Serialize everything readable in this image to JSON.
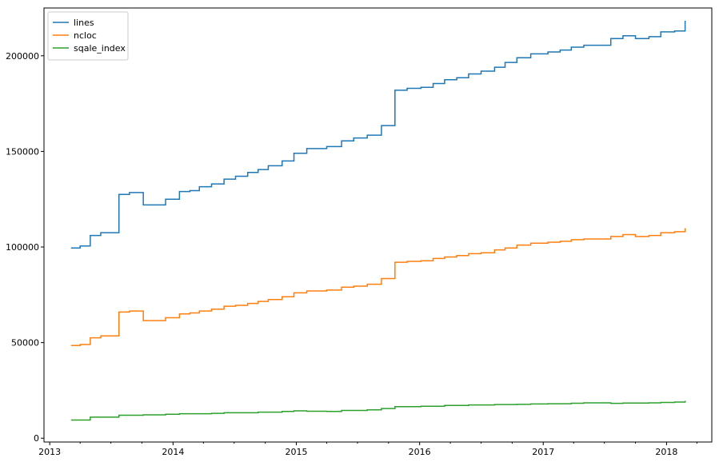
{
  "chart_data": {
    "type": "line",
    "line_style": "steps-post",
    "title": "",
    "xlabel": "",
    "ylabel": "",
    "xlim": [
      "2012-12-15",
      "2018-05-15"
    ],
    "ylim": [
      -2000,
      225000
    ],
    "grid": false,
    "legend_position": "top-left",
    "x_ticks": [
      {
        "date": "2013-01-01",
        "label": "2013"
      },
      {
        "date": "2014-01-01",
        "label": "2014"
      },
      {
        "date": "2015-01-01",
        "label": "2015"
      },
      {
        "date": "2016-01-01",
        "label": "2016"
      },
      {
        "date": "2017-01-01",
        "label": "2017"
      },
      {
        "date": "2018-01-01",
        "label": "2018"
      }
    ],
    "x_minor_ticks": [
      "2013-04-01",
      "2013-07-01",
      "2013-10-01",
      "2014-04-01",
      "2014-07-01",
      "2014-10-01",
      "2015-04-01",
      "2015-07-01",
      "2015-10-01",
      "2016-04-01",
      "2016-07-01",
      "2016-10-01",
      "2017-04-01",
      "2017-07-01",
      "2017-10-01",
      "2018-04-01"
    ],
    "y_ticks": [
      {
        "value": 0,
        "label": "0"
      },
      {
        "value": 50000,
        "label": "50000"
      },
      {
        "value": 100000,
        "label": "100000"
      },
      {
        "value": 150000,
        "label": "150000"
      },
      {
        "value": 200000,
        "label": "200000"
      }
    ],
    "series": [
      {
        "name": "lines",
        "color": "#1f77b4",
        "points": [
          [
            "2013-03-05",
            99500
          ],
          [
            "2013-04-01",
            100500
          ],
          [
            "2013-05-01",
            106000
          ],
          [
            "2013-06-01",
            107500
          ],
          [
            "2013-07-25",
            127500
          ],
          [
            "2013-08-25",
            128500
          ],
          [
            "2013-10-05",
            122000
          ],
          [
            "2013-12-10",
            125000
          ],
          [
            "2014-01-20",
            129000
          ],
          [
            "2014-02-20",
            129500
          ],
          [
            "2014-03-20",
            131500
          ],
          [
            "2014-04-25",
            133000
          ],
          [
            "2014-06-01",
            135500
          ],
          [
            "2014-07-05",
            137000
          ],
          [
            "2014-08-10",
            139000
          ],
          [
            "2014-09-10",
            140500
          ],
          [
            "2014-10-10",
            142500
          ],
          [
            "2014-11-20",
            145000
          ],
          [
            "2014-12-25",
            149000
          ],
          [
            "2015-02-01",
            151500
          ],
          [
            "2015-04-01",
            152500
          ],
          [
            "2015-05-15",
            155500
          ],
          [
            "2015-06-20",
            157000
          ],
          [
            "2015-07-30",
            158500
          ],
          [
            "2015-09-10",
            163500
          ],
          [
            "2015-10-20",
            182000
          ],
          [
            "2015-11-25",
            183000
          ],
          [
            "2016-01-05",
            183500
          ],
          [
            "2016-02-10",
            185500
          ],
          [
            "2016-03-15",
            187500
          ],
          [
            "2016-04-20",
            188500
          ],
          [
            "2016-05-25",
            190500
          ],
          [
            "2016-07-01",
            192000
          ],
          [
            "2016-08-10",
            194000
          ],
          [
            "2016-09-10",
            196500
          ],
          [
            "2016-10-15",
            199000
          ],
          [
            "2016-11-25",
            201000
          ],
          [
            "2017-01-15",
            202000
          ],
          [
            "2017-02-20",
            203000
          ],
          [
            "2017-03-25",
            204500
          ],
          [
            "2017-05-01",
            205500
          ],
          [
            "2017-06-01",
            205500
          ],
          [
            "2017-07-20",
            209000
          ],
          [
            "2017-08-25",
            210500
          ],
          [
            "2017-10-01",
            209000
          ],
          [
            "2017-11-10",
            210000
          ],
          [
            "2017-12-15",
            212500
          ],
          [
            "2018-01-25",
            213000
          ],
          [
            "2018-02-25",
            218000
          ],
          [
            "2018-02-27",
            218000
          ]
        ]
      },
      {
        "name": "ncloc",
        "color": "#ff7f0e",
        "points": [
          [
            "2013-03-05",
            48500
          ],
          [
            "2013-04-01",
            49000
          ],
          [
            "2013-05-01",
            52500
          ],
          [
            "2013-06-01",
            53500
          ],
          [
            "2013-07-25",
            66000
          ],
          [
            "2013-08-25",
            66500
          ],
          [
            "2013-10-05",
            61500
          ],
          [
            "2013-12-10",
            63000
          ],
          [
            "2014-01-20",
            65000
          ],
          [
            "2014-02-20",
            65500
          ],
          [
            "2014-03-20",
            66500
          ],
          [
            "2014-04-25",
            67500
          ],
          [
            "2014-06-01",
            69000
          ],
          [
            "2014-07-05",
            69500
          ],
          [
            "2014-08-10",
            70500
          ],
          [
            "2014-09-10",
            71500
          ],
          [
            "2014-10-10",
            72500
          ],
          [
            "2014-11-20",
            74000
          ],
          [
            "2014-12-25",
            76000
          ],
          [
            "2015-02-01",
            77000
          ],
          [
            "2015-04-01",
            77500
          ],
          [
            "2015-05-15",
            79000
          ],
          [
            "2015-06-20",
            79500
          ],
          [
            "2015-07-30",
            80500
          ],
          [
            "2015-09-10",
            83500
          ],
          [
            "2015-10-20",
            92000
          ],
          [
            "2015-11-25",
            92500
          ],
          [
            "2016-01-05",
            92800
          ],
          [
            "2016-02-10",
            94000
          ],
          [
            "2016-03-15",
            94800
          ],
          [
            "2016-04-20",
            95500
          ],
          [
            "2016-05-25",
            96500
          ],
          [
            "2016-07-01",
            97000
          ],
          [
            "2016-08-10",
            98500
          ],
          [
            "2016-09-10",
            99500
          ],
          [
            "2016-10-15",
            101000
          ],
          [
            "2016-11-25",
            102000
          ],
          [
            "2017-01-15",
            102500
          ],
          [
            "2017-02-20",
            103000
          ],
          [
            "2017-03-25",
            103800
          ],
          [
            "2017-05-01",
            104200
          ],
          [
            "2017-06-01",
            104200
          ],
          [
            "2017-07-20",
            105500
          ],
          [
            "2017-08-25",
            106500
          ],
          [
            "2017-10-01",
            105500
          ],
          [
            "2017-11-10",
            106000
          ],
          [
            "2017-12-15",
            107500
          ],
          [
            "2018-01-25",
            108000
          ],
          [
            "2018-02-25",
            109500
          ],
          [
            "2018-02-27",
            109500
          ]
        ]
      },
      {
        "name": "sqale_index",
        "color": "#2ca02c",
        "points": [
          [
            "2013-03-05",
            9500
          ],
          [
            "2013-05-01",
            11000
          ],
          [
            "2013-07-25",
            12000
          ],
          [
            "2013-10-05",
            12200
          ],
          [
            "2013-12-10",
            12500
          ],
          [
            "2014-01-20",
            12800
          ],
          [
            "2014-04-25",
            13000
          ],
          [
            "2014-06-01",
            13300
          ],
          [
            "2014-09-10",
            13600
          ],
          [
            "2014-11-20",
            14000
          ],
          [
            "2014-12-25",
            14300
          ],
          [
            "2015-02-01",
            14100
          ],
          [
            "2015-04-01",
            14000
          ],
          [
            "2015-05-15",
            14500
          ],
          [
            "2015-07-30",
            14800
          ],
          [
            "2015-09-10",
            15500
          ],
          [
            "2015-10-20",
            16500
          ],
          [
            "2016-01-05",
            16700
          ],
          [
            "2016-03-15",
            17100
          ],
          [
            "2016-05-25",
            17400
          ],
          [
            "2016-08-10",
            17600
          ],
          [
            "2016-10-15",
            17700
          ],
          [
            "2016-11-25",
            17900
          ],
          [
            "2017-01-15",
            18000
          ],
          [
            "2017-03-25",
            18300
          ],
          [
            "2017-05-01",
            18500
          ],
          [
            "2017-07-20",
            18200
          ],
          [
            "2017-08-25",
            18400
          ],
          [
            "2017-11-10",
            18500
          ],
          [
            "2017-12-15",
            18700
          ],
          [
            "2018-01-25",
            18900
          ],
          [
            "2018-02-25",
            19200
          ],
          [
            "2018-02-27",
            19200
          ]
        ]
      }
    ]
  }
}
